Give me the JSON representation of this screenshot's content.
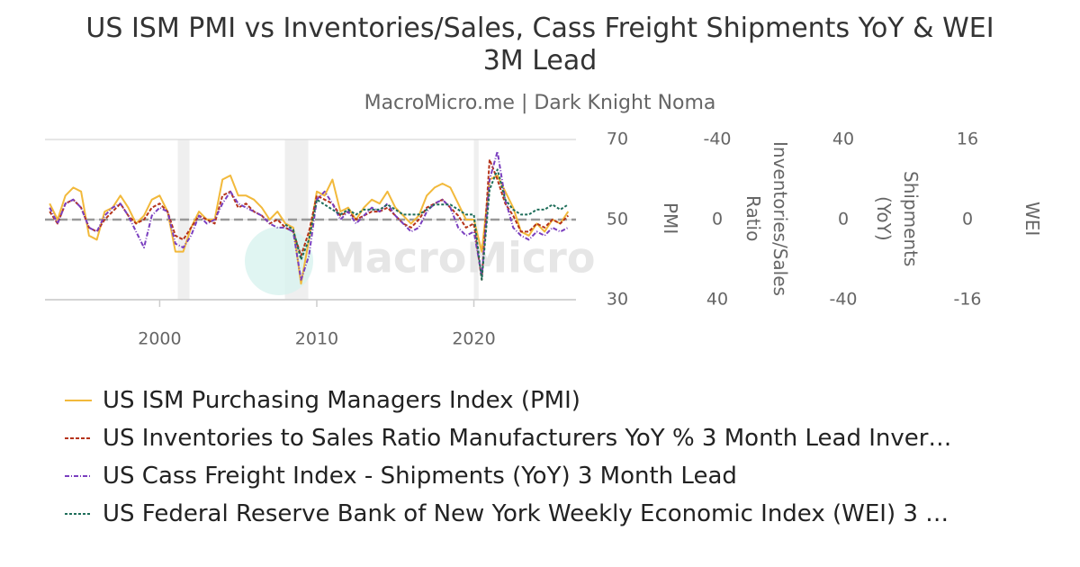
{
  "chart_data": {
    "type": "line",
    "title": "US ISM PMI vs Inventories/Sales, Cass Freight Shipments YoY & WEI 3M Lead",
    "subtitle": "MacroMicro.me | Dark Knight Noma",
    "watermark": "MacroMicro",
    "xlim": [
      1992.7,
      2026.5
    ],
    "xticks": [
      2000,
      2010,
      2020
    ],
    "grid": true,
    "reference_line": 50,
    "shaded_periods": [
      [
        2001.15,
        2001.9
      ],
      [
        2007.97,
        2009.46
      ],
      [
        2020.0,
        2020.3
      ]
    ],
    "axes": [
      {
        "label": "PMI",
        "lim": [
          30,
          70
        ],
        "ticks": [
          30,
          50,
          70
        ]
      },
      {
        "label": "Inventories/Sales Ratio",
        "lim": [
          40,
          -40
        ],
        "ticks": [
          40,
          0,
          -40
        ]
      },
      {
        "label": "Shipments (YoY)",
        "lim": [
          -40,
          40
        ],
        "ticks": [
          -40,
          0,
          40
        ]
      },
      {
        "label": "WEI",
        "lim": [
          -16,
          16
        ],
        "ticks": [
          -16,
          0,
          16
        ]
      }
    ],
    "x": [
      1993.0,
      1993.5,
      1994.0,
      1994.5,
      1995.0,
      1995.5,
      1996.0,
      1996.5,
      1997.0,
      1997.5,
      1998.0,
      1998.5,
      1999.0,
      1999.5,
      2000.0,
      2000.5,
      2001.0,
      2001.5,
      2002.0,
      2002.5,
      2003.0,
      2003.5,
      2004.0,
      2004.5,
      2005.0,
      2005.5,
      2006.0,
      2006.5,
      2007.0,
      2007.5,
      2008.0,
      2008.5,
      2009.0,
      2009.5,
      2010.0,
      2010.5,
      2011.0,
      2011.5,
      2012.0,
      2012.5,
      2013.0,
      2013.5,
      2014.0,
      2014.5,
      2015.0,
      2015.5,
      2016.0,
      2016.5,
      2017.0,
      2017.5,
      2018.0,
      2018.5,
      2019.0,
      2019.5,
      2020.0,
      2020.5,
      2021.0,
      2021.5,
      2022.0,
      2022.5,
      2023.0,
      2023.5,
      2024.0,
      2024.5,
      2025.0,
      2025.5,
      2026.0
    ],
    "series": [
      {
        "name": "US ISM Purchasing Managers Index (PMI)",
        "color": "#f2b93b",
        "dash": "",
        "axis": 0,
        "values": [
          54,
          50,
          56,
          58,
          57,
          46,
          45,
          52,
          53,
          56,
          53,
          49,
          51,
          55,
          56,
          52,
          42,
          42,
          48,
          52,
          50,
          50,
          60,
          61,
          56,
          56,
          55,
          53,
          50,
          52,
          49,
          48,
          34,
          45,
          57,
          56,
          60,
          52,
          53,
          50,
          53,
          55,
          54,
          57,
          53,
          51,
          49,
          51,
          56,
          58,
          59,
          58,
          54,
          50,
          50,
          42,
          60,
          61,
          57,
          53,
          47,
          46,
          49,
          47,
          50,
          49,
          52
        ]
      },
      {
        "name": "US Inventories to Sales Ratio Manufacturers YoY % 3 Month Lead Inver…",
        "color": "#b5331a",
        "dash": "4 2",
        "axis": 1,
        "values": [
          -4,
          2,
          -8,
          -10,
          -6,
          4,
          6,
          0,
          -4,
          -8,
          -2,
          2,
          0,
          -6,
          -8,
          -4,
          8,
          10,
          4,
          -2,
          0,
          2,
          -12,
          -14,
          -6,
          -8,
          -4,
          -2,
          2,
          0,
          4,
          6,
          18,
          6,
          -12,
          -10,
          -8,
          -2,
          -4,
          0,
          -2,
          -4,
          -4,
          -6,
          -2,
          2,
          4,
          0,
          -6,
          -8,
          -10,
          -6,
          -2,
          4,
          2,
          30,
          -30,
          -20,
          -8,
          -2,
          6,
          6,
          2,
          4,
          0,
          2,
          -2
        ]
      },
      {
        "name": "US Cass Freight Index - Shipments (YoY) 3 Month Lead",
        "color": "#7a3fbf",
        "dash": "5 2 1 2",
        "axis": 2,
        "values": [
          6,
          -2,
          8,
          10,
          6,
          -4,
          -6,
          2,
          6,
          8,
          2,
          -6,
          -14,
          2,
          6,
          4,
          -12,
          -14,
          -8,
          2,
          -2,
          0,
          8,
          14,
          8,
          6,
          4,
          2,
          -2,
          -4,
          -4,
          -6,
          -30,
          -18,
          10,
          14,
          8,
          0,
          4,
          -2,
          2,
          6,
          4,
          8,
          2,
          -2,
          -6,
          -4,
          4,
          8,
          10,
          6,
          -4,
          -8,
          -6,
          -28,
          20,
          34,
          10,
          -4,
          -8,
          -10,
          -6,
          -8,
          -4,
          -6,
          -4
        ]
      },
      {
        "name": "US Federal Reserve Bank of New York Weekly Economic Index (WEI) 3 …",
        "color": "#1f6e5a",
        "dash": "3 2",
        "axis": 3,
        "values": [
          null,
          null,
          null,
          null,
          null,
          null,
          null,
          null,
          null,
          null,
          null,
          null,
          null,
          null,
          null,
          null,
          null,
          null,
          null,
          null,
          null,
          null,
          null,
          null,
          null,
          null,
          null,
          null,
          null,
          null,
          -1,
          -2,
          -8,
          -4,
          4,
          3,
          2,
          1,
          2,
          1,
          2,
          2,
          2,
          3,
          2,
          1,
          1,
          1,
          2,
          3,
          3,
          3,
          2,
          1,
          1,
          -12,
          6,
          10,
          4,
          2,
          1,
          1,
          2,
          2,
          3,
          2,
          3
        ]
      }
    ]
  }
}
